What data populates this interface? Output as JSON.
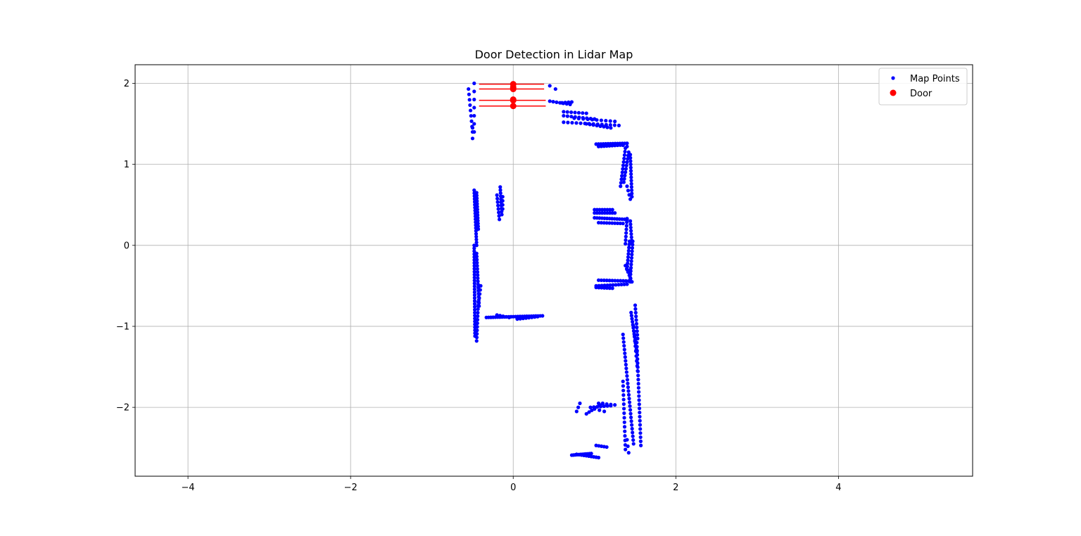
{
  "chart_data": {
    "type": "scatter",
    "title": "Door Detection in Lidar Map",
    "xlabel": "",
    "ylabel": "",
    "xlim": [
      -4.65,
      5.65
    ],
    "ylim": [
      -2.85,
      2.23
    ],
    "xticks": [
      -4,
      -2,
      0,
      2,
      4
    ],
    "yticks": [
      -2,
      -1,
      0,
      1,
      2
    ],
    "xtick_labels": [
      "−4",
      "−2",
      "0",
      "2",
      "4"
    ],
    "ytick_labels": [
      "−2",
      "−1",
      "0",
      "1",
      "2"
    ],
    "grid": true,
    "legend_position": "top-right",
    "colors": {
      "map": "#0000ff",
      "door": "#ff0000",
      "grid": "#b0b0b0",
      "axes": "#000000"
    },
    "door_lines": [
      {
        "x1": -0.42,
        "x2": 0.38,
        "y": 1.99
      },
      {
        "x1": -0.42,
        "x2": 0.38,
        "y": 1.93
      },
      {
        "x1": -0.42,
        "x2": 0.4,
        "y": 1.79
      },
      {
        "x1": -0.42,
        "x2": 0.4,
        "y": 1.72
      }
    ],
    "series": [
      {
        "name": "Map Points",
        "marker": "small-dot",
        "color": "#0000ff",
        "segments": [
          {
            "from": [
              -0.55,
              1.93
            ],
            "to": [
              -0.5,
              1.4
            ],
            "n": 9
          },
          {
            "from": [
              -0.48,
              2.0
            ],
            "to": [
              -0.48,
              1.4
            ],
            "n": 7
          },
          {
            "from": [
              -0.5,
              1.45
            ],
            "to": [
              -0.5,
              1.32
            ],
            "n": 2
          },
          {
            "from": [
              0.45,
              1.97
            ],
            "to": [
              0.52,
              1.93
            ],
            "n": 2
          },
          {
            "from": [
              0.45,
              1.78
            ],
            "to": [
              0.7,
              1.74
            ],
            "n": 7
          },
          {
            "from": [
              0.6,
              1.76
            ],
            "to": [
              0.72,
              1.77
            ],
            "n": 4
          },
          {
            "from": [
              0.62,
              1.65
            ],
            "to": [
              0.9,
              1.63
            ],
            "n": 7
          },
          {
            "from": [
              0.62,
              1.6
            ],
            "to": [
              1.0,
              1.56
            ],
            "n": 9
          },
          {
            "from": [
              0.62,
              1.52
            ],
            "to": [
              1.3,
              1.48
            ],
            "n": 14
          },
          {
            "from": [
              0.75,
              1.57
            ],
            "to": [
              1.25,
              1.53
            ],
            "n": 10
          },
          {
            "from": [
              0.9,
              1.5
            ],
            "to": [
              1.2,
              1.45
            ],
            "n": 8
          },
          {
            "from": [
              1.02,
              1.25
            ],
            "to": [
              1.4,
              1.26
            ],
            "n": 14
          },
          {
            "from": [
              1.05,
              1.22
            ],
            "to": [
              1.35,
              1.24
            ],
            "n": 10
          },
          {
            "from": [
              1.3,
              1.25
            ],
            "to": [
              1.4,
              1.22
            ],
            "n": 3
          },
          {
            "from": [
              1.38,
              1.2
            ],
            "to": [
              1.32,
              0.73
            ],
            "n": 12
          },
          {
            "from": [
              1.42,
              1.15
            ],
            "to": [
              1.36,
              0.78
            ],
            "n": 10
          },
          {
            "from": [
              1.44,
              1.12
            ],
            "to": [
              1.46,
              0.6
            ],
            "n": 14
          },
          {
            "from": [
              1.4,
              0.73
            ],
            "to": [
              1.44,
              0.57
            ],
            "n": 4
          },
          {
            "from": [
              -0.48,
              0.68
            ],
            "to": [
              -0.45,
              0.0
            ],
            "n": 20
          },
          {
            "from": [
              -0.45,
              0.65
            ],
            "to": [
              -0.43,
              0.2
            ],
            "n": 14
          },
          {
            "from": [
              -0.48,
              0.0
            ],
            "to": [
              -0.47,
              -1.12
            ],
            "n": 32
          },
          {
            "from": [
              -0.45,
              -0.1
            ],
            "to": [
              -0.42,
              -0.75
            ],
            "n": 18
          },
          {
            "from": [
              -0.43,
              -0.7
            ],
            "to": [
              -0.45,
              -1.18
            ],
            "n": 12
          },
          {
            "from": [
              -0.4,
              -0.5
            ],
            "to": [
              -0.43,
              -0.75
            ],
            "n": 6
          },
          {
            "from": [
              -0.2,
              0.62
            ],
            "to": [
              -0.17,
              0.32
            ],
            "n": 8
          },
          {
            "from": [
              -0.16,
              0.72
            ],
            "to": [
              -0.14,
              0.38
            ],
            "n": 10
          },
          {
            "from": [
              -0.13,
              0.6
            ],
            "to": [
              -0.13,
              0.45
            ],
            "n": 4
          },
          {
            "from": [
              -0.33,
              -0.89
            ],
            "to": [
              0.36,
              -0.87
            ],
            "n": 26
          },
          {
            "from": [
              -0.2,
              -0.86
            ],
            "to": [
              -0.05,
              -0.89
            ],
            "n": 5
          },
          {
            "from": [
              0.05,
              -0.91
            ],
            "to": [
              0.3,
              -0.88
            ],
            "n": 8
          },
          {
            "from": [
              1.0,
              0.44
            ],
            "to": [
              1.22,
              0.44
            ],
            "n": 8
          },
          {
            "from": [
              1.0,
              0.4
            ],
            "to": [
              1.25,
              0.4
            ],
            "n": 9
          },
          {
            "from": [
              1.0,
              0.34
            ],
            "to": [
              1.4,
              0.32
            ],
            "n": 14
          },
          {
            "from": [
              1.05,
              0.28
            ],
            "to": [
              1.35,
              0.27
            ],
            "n": 10
          },
          {
            "from": [
              1.4,
              0.33
            ],
            "to": [
              1.38,
              0.02
            ],
            "n": 8
          },
          {
            "from": [
              1.44,
              0.3
            ],
            "to": [
              1.46,
              0.02
            ],
            "n": 8
          },
          {
            "from": [
              1.43,
              0.05
            ],
            "to": [
              1.4,
              -0.3
            ],
            "n": 10
          },
          {
            "from": [
              1.47,
              0.05
            ],
            "to": [
              1.44,
              -0.4
            ],
            "n": 12
          },
          {
            "from": [
              1.38,
              -0.25
            ],
            "to": [
              1.46,
              -0.45
            ],
            "n": 6
          },
          {
            "from": [
              1.44,
              -0.3
            ],
            "to": [
              1.44,
              -0.45
            ],
            "n": 4
          },
          {
            "from": [
              1.05,
              -0.43
            ],
            "to": [
              1.42,
              -0.44
            ],
            "n": 12
          },
          {
            "from": [
              1.02,
              -0.5
            ],
            "to": [
              1.4,
              -0.48
            ],
            "n": 12
          },
          {
            "from": [
              1.02,
              -0.52
            ],
            "to": [
              1.22,
              -0.53
            ],
            "n": 7
          },
          {
            "from": [
              1.45,
              -0.83
            ],
            "to": [
              1.52,
              -1.32
            ],
            "n": 14
          },
          {
            "from": [
              1.5,
              -0.74
            ],
            "to": [
              1.53,
              -1.15
            ],
            "n": 10
          },
          {
            "from": [
              1.48,
              -1.0
            ],
            "to": [
              1.53,
              -1.55
            ],
            "n": 10
          },
          {
            "from": [
              1.35,
              -1.1
            ],
            "to": [
              1.48,
              -2.45
            ],
            "n": 30
          },
          {
            "from": [
              1.52,
              -1.2
            ],
            "to": [
              1.57,
              -2.47
            ],
            "n": 26
          },
          {
            "from": [
              1.35,
              -1.68
            ],
            "to": [
              1.38,
              -2.52
            ],
            "n": 16
          },
          {
            "from": [
              1.4,
              -2.4
            ],
            "to": [
              1.42,
              -2.56
            ],
            "n": 3
          },
          {
            "from": [
              0.78,
              -2.05
            ],
            "to": [
              0.82,
              -1.95
            ],
            "n": 3
          },
          {
            "from": [
              0.9,
              -2.08
            ],
            "to": [
              1.1,
              -1.95
            ],
            "n": 7
          },
          {
            "from": [
              0.95,
              -2.0
            ],
            "to": [
              1.2,
              -1.98
            ],
            "n": 7
          },
          {
            "from": [
              1.0,
              -2.02
            ],
            "to": [
              1.12,
              -2.05
            ],
            "n": 3
          },
          {
            "from": [
              1.05,
              -1.95
            ],
            "to": [
              1.25,
              -1.97
            ],
            "n": 5
          },
          {
            "from": [
              0.72,
              -2.59
            ],
            "to": [
              0.96,
              -2.57
            ],
            "n": 12
          },
          {
            "from": [
              0.78,
              -2.58
            ],
            "to": [
              1.05,
              -2.62
            ],
            "n": 10
          },
          {
            "from": [
              1.02,
              -2.47
            ],
            "to": [
              1.15,
              -2.49
            ],
            "n": 5
          }
        ]
      },
      {
        "name": "Door",
        "marker": "large-dot",
        "color": "#ff0000",
        "points": [
          [
            0.0,
            1.99
          ],
          [
            0.0,
            1.95
          ],
          [
            0.0,
            1.93
          ],
          [
            0.0,
            1.8
          ],
          [
            0.0,
            1.79
          ],
          [
            0.0,
            1.72
          ]
        ]
      }
    ]
  }
}
